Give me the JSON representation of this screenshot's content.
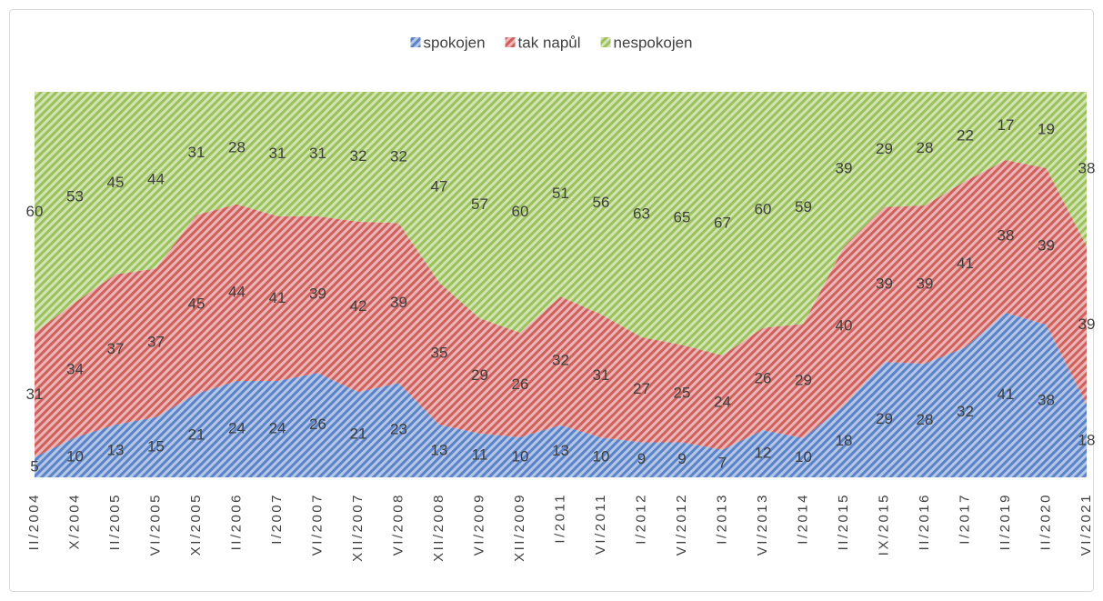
{
  "chart_data": {
    "type": "area",
    "stacking": "percent",
    "categories": [
      "II/2004",
      "X/2004",
      "II/2005",
      "VI/2005",
      "XI/2005",
      "II/2006",
      "I/2007",
      "VI/2007",
      "XII/2007",
      "VI/2008",
      "XII/2008",
      "VI/2009",
      "XII/2009",
      "I/2011",
      "VI/2011",
      "I/2012",
      "VI/2012",
      "I/2013",
      "VI/2013",
      "I/2014",
      "II/2015",
      "IX/2015",
      "II/2016",
      "I/2017",
      "II/2019",
      "II/2020",
      "VI/2021"
    ],
    "series": [
      {
        "name": "spokojen",
        "color": "#5b83c9",
        "values": [
          5,
          10,
          13,
          15,
          21,
          24,
          24,
          26,
          21,
          23,
          13,
          11,
          10,
          13,
          10,
          9,
          9,
          7,
          12,
          10,
          18,
          29,
          28,
          32,
          41,
          38,
          18
        ]
      },
      {
        "name": "tak napůl",
        "color": "#d0605d",
        "values": [
          31,
          34,
          37,
          37,
          45,
          44,
          41,
          39,
          42,
          39,
          35,
          29,
          26,
          32,
          31,
          27,
          25,
          24,
          26,
          29,
          40,
          39,
          39,
          41,
          38,
          39,
          39
        ]
      },
      {
        "name": "nespokojen",
        "color": "#9bc25a",
        "values": [
          60,
          53,
          45,
          44,
          31,
          28,
          31,
          31,
          32,
          32,
          47,
          57,
          60,
          51,
          56,
          63,
          65,
          67,
          60,
          59,
          39,
          29,
          28,
          22,
          17,
          19,
          38
        ]
      }
    ],
    "legend": "top",
    "data_labels": true
  }
}
